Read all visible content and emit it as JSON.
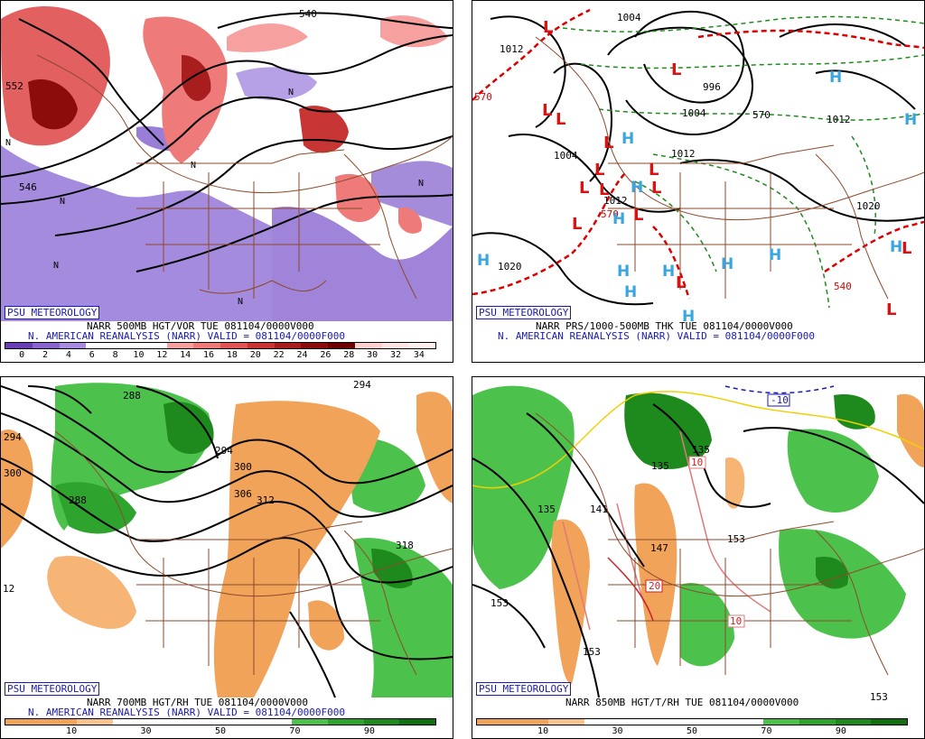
{
  "panels": {
    "tl": {
      "logo": "PSU METEOROLOGY",
      "caption1": "NARR 500MB HGT/VOR TUE 081104/0000V000",
      "caption2": "N. AMERICAN REANALYSIS (NARR) VALID = 081104/0000F000",
      "contour_labels": [
        "540",
        "552",
        "546",
        "N",
        "N",
        "N",
        "N",
        "N",
        "N",
        "N"
      ],
      "colorbar": {
        "colors": [
          "#6a3fb5",
          "#8a64cf",
          "#a98be0",
          "#ffffff",
          "#ffffff",
          "#ffffff",
          "#f6a0a0",
          "#ee7a7a",
          "#e05555",
          "#c83535",
          "#a81e1e",
          "#8c0c0c",
          "#6e0000",
          "#ffd0d0",
          "#ffe4e4",
          "#fff0f0"
        ],
        "ticks": [
          "0",
          "2",
          "4",
          "6",
          "8",
          "10",
          "12",
          "14",
          "16",
          "18",
          "20",
          "22",
          "24",
          "26",
          "28",
          "30",
          "32",
          "34"
        ]
      }
    },
    "tr": {
      "logo": "PSU METEOROLOGY",
      "caption1": "NARR PRS/1000-500MB THK TUE 081104/0000V000",
      "caption2": "N. AMERICAN REANALYSIS (NARR) VALID = 081104/0000F000",
      "contour_labels": [
        "1012",
        "1004",
        "996",
        "1004",
        "1012",
        "1004",
        "1012",
        "1020",
        "1020",
        "1012",
        "570",
        "570",
        "570",
        "540"
      ],
      "highs": [
        "H",
        "H",
        "H",
        "H",
        "H",
        "H",
        "H",
        "H",
        "H",
        "H",
        "H",
        "H",
        "H"
      ],
      "lows": [
        "L",
        "L",
        "L",
        "L",
        "L",
        "L",
        "L",
        "L",
        "L",
        "L",
        "L",
        "L",
        "L",
        "L",
        "L"
      ]
    },
    "bl": {
      "logo": "PSU METEOROLOGY",
      "caption1": "NARR 700MB HGT/RH TUE 081104/0000V000",
      "caption2": "N. AMERICAN REANALYSIS (NARR) VALID = 081104/0000F000",
      "contour_labels": [
        "288",
        "294",
        "300",
        "288",
        "294",
        "300",
        "306",
        "312",
        "318",
        "12",
        "294"
      ],
      "colorbar": {
        "colors": [
          "#f2a35a",
          "#f2a35a",
          "#f6c38e",
          "#ffffff",
          "#ffffff",
          "#ffffff",
          "#ffffff",
          "#ffffff",
          "#4cc24c",
          "#2ea42e",
          "#1e8a1e",
          "#107010"
        ],
        "ticks": [
          "10",
          "30",
          "50",
          "70",
          "90"
        ]
      }
    },
    "br": {
      "logo": "PSU METEOROLOGY",
      "caption1": "NARR 850MB HGT/T/RH TUE 081104/0000V000",
      "caption2": "",
      "contour_labels": [
        "-10",
        "135",
        "135",
        "10",
        "135",
        "141",
        "147",
        "153",
        "153",
        "153",
        "20",
        "10",
        "153"
      ],
      "colorbar": {
        "colors": [
          "#f2a35a",
          "#f2a35a",
          "#f6c38e",
          "#ffffff",
          "#ffffff",
          "#ffffff",
          "#ffffff",
          "#ffffff",
          "#4cc24c",
          "#2ea42e",
          "#1e8a1e",
          "#107010"
        ],
        "ticks": [
          "10",
          "30",
          "50",
          "70",
          "90"
        ]
      }
    }
  }
}
